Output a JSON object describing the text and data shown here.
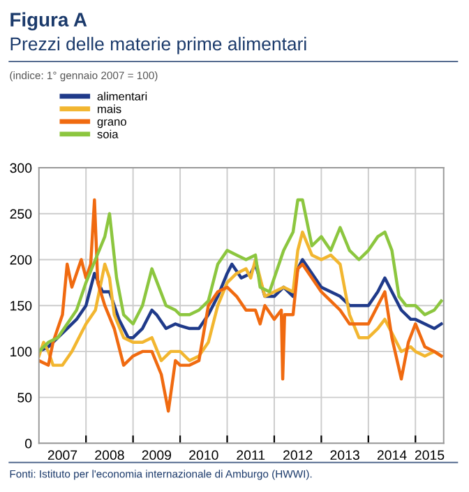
{
  "chart_data": {
    "type": "line",
    "title": "Figura A",
    "subtitle": "Prezzi delle materie prime alimentari",
    "annotations": [
      "(indice: 1° gennaio 2007 = 100)",
      "Fonti: Istituto per l'economia internazionale di Amburgo (HWWI)."
    ],
    "series": [
      {
        "name": "alimentari",
        "color": "#1f3a8a",
        "x": [
          2007.0,
          2007.2,
          2007.4,
          2007.6,
          2007.8,
          2008.0,
          2008.18,
          2008.35,
          2008.5,
          2008.7,
          2008.9,
          2009.0,
          2009.2,
          2009.4,
          2009.5,
          2009.7,
          2009.9,
          2010.0,
          2010.2,
          2010.4,
          2010.6,
          2010.8,
          2011.0,
          2011.1,
          2011.3,
          2011.5,
          2011.6,
          2011.8,
          2012.0,
          2012.2,
          2012.4,
          2012.5,
          2012.6,
          2012.8,
          2013.0,
          2013.2,
          2013.4,
          2013.6,
          2013.8,
          2014.0,
          2014.2,
          2014.35,
          2014.5,
          2014.7,
          2014.9,
          2015.0,
          2015.2,
          2015.4,
          2015.55
        ],
        "values": [
          100,
          105,
          115,
          125,
          135,
          150,
          185,
          165,
          165,
          135,
          115,
          115,
          125,
          145,
          140,
          125,
          130,
          128,
          125,
          125,
          140,
          160,
          185,
          195,
          180,
          185,
          195,
          160,
          160,
          170,
          160,
          190,
          200,
          185,
          170,
          165,
          160,
          150,
          150,
          150,
          165,
          180,
          165,
          145,
          135,
          135,
          130,
          125,
          130
        ]
      },
      {
        "name": "mais",
        "color": "#f2b630",
        "x": [
          2007.0,
          2007.1,
          2007.2,
          2007.3,
          2007.5,
          2007.7,
          2007.9,
          2008.0,
          2008.2,
          2008.4,
          2008.5,
          2008.6,
          2008.8,
          2009.0,
          2009.2,
          2009.4,
          2009.6,
          2009.8,
          2010.0,
          2010.2,
          2010.4,
          2010.6,
          2010.8,
          2011.0,
          2011.2,
          2011.4,
          2011.5,
          2011.6,
          2011.8,
          2012.0,
          2012.2,
          2012.4,
          2012.5,
          2012.6,
          2012.8,
          2013.0,
          2013.2,
          2013.4,
          2013.6,
          2013.8,
          2014.0,
          2014.2,
          2014.35,
          2014.5,
          2014.7,
          2014.9,
          2015.0,
          2015.2,
          2015.4,
          2015.55
        ],
        "values": [
          95,
          110,
          100,
          85,
          85,
          100,
          120,
          130,
          145,
          195,
          180,
          140,
          115,
          110,
          110,
          115,
          90,
          100,
          100,
          90,
          95,
          110,
          150,
          175,
          185,
          190,
          180,
          200,
          160,
          165,
          170,
          165,
          210,
          230,
          205,
          200,
          205,
          195,
          140,
          115,
          115,
          125,
          135,
          120,
          100,
          105,
          100,
          95,
          100,
          95
        ]
      },
      {
        "name": "grano",
        "color": "#f06a10",
        "x": [
          2007.0,
          2007.2,
          2007.3,
          2007.5,
          2007.6,
          2007.7,
          2007.9,
          2008.0,
          2008.1,
          2008.18,
          2008.25,
          2008.4,
          2008.6,
          2008.8,
          2009.0,
          2009.2,
          2009.4,
          2009.6,
          2009.75,
          2009.9,
          2010.0,
          2010.2,
          2010.4,
          2010.6,
          2010.8,
          2011.0,
          2011.2,
          2011.4,
          2011.6,
          2011.7,
          2011.8,
          2012.0,
          2012.15,
          2012.18,
          2012.22,
          2012.4,
          2012.5,
          2012.6,
          2012.8,
          2013.0,
          2013.2,
          2013.4,
          2013.6,
          2013.8,
          2014.0,
          2014.2,
          2014.35,
          2014.5,
          2014.7,
          2014.85,
          2015.0,
          2015.2,
          2015.4,
          2015.55
        ],
        "values": [
          90,
          85,
          110,
          140,
          195,
          170,
          200,
          180,
          195,
          265,
          175,
          150,
          125,
          85,
          95,
          100,
          100,
          75,
          35,
          90,
          85,
          85,
          90,
          150,
          165,
          170,
          160,
          145,
          145,
          130,
          150,
          135,
          145,
          70,
          140,
          140,
          190,
          195,
          180,
          165,
          155,
          145,
          130,
          130,
          130,
          150,
          165,
          115,
          70,
          110,
          130,
          105,
          100,
          95
        ]
      },
      {
        "name": "soia",
        "color": "#8cc63f",
        "x": [
          2007.0,
          2007.2,
          2007.4,
          2007.6,
          2007.8,
          2008.0,
          2008.2,
          2008.4,
          2008.5,
          2008.65,
          2008.8,
          2009.0,
          2009.2,
          2009.4,
          2009.55,
          2009.7,
          2009.9,
          2010.0,
          2010.2,
          2010.4,
          2010.6,
          2010.8,
          2011.0,
          2011.2,
          2011.4,
          2011.6,
          2011.7,
          2011.9,
          2012.0,
          2012.2,
          2012.4,
          2012.5,
          2012.6,
          2012.8,
          2013.0,
          2013.2,
          2013.4,
          2013.6,
          2013.8,
          2014.0,
          2014.2,
          2014.35,
          2014.5,
          2014.65,
          2014.8,
          2015.0,
          2015.2,
          2015.4,
          2015.55
        ],
        "values": [
          100,
          110,
          115,
          130,
          145,
          175,
          200,
          225,
          250,
          180,
          140,
          130,
          150,
          190,
          170,
          150,
          145,
          140,
          140,
          145,
          155,
          195,
          210,
          205,
          200,
          205,
          170,
          165,
          180,
          210,
          230,
          265,
          265,
          215,
          225,
          210,
          235,
          210,
          200,
          210,
          225,
          230,
          210,
          160,
          150,
          150,
          140,
          145,
          155
        ]
      }
    ],
    "xlim": [
      2007,
      2015.6
    ],
    "xticks": [
      {
        "value": 2008,
        "label": null
      },
      {
        "value": 2009,
        "label": null
      },
      {
        "value": 2010,
        "label": null
      },
      {
        "value": 2011,
        "label": null
      },
      {
        "value": 2012,
        "label": null
      },
      {
        "value": 2013,
        "label": null
      },
      {
        "value": 2014,
        "label": null
      },
      {
        "value": 2015,
        "label": null
      },
      {
        "value": 2007.5,
        "label": "2007"
      },
      {
        "value": 2008.5,
        "label": "2008"
      },
      {
        "value": 2009.5,
        "label": "2009"
      },
      {
        "value": 2010.5,
        "label": "2010"
      },
      {
        "value": 2011.5,
        "label": "2011"
      },
      {
        "value": 2012.5,
        "label": "2012"
      },
      {
        "value": 2013.5,
        "label": "2013"
      },
      {
        "value": 2014.5,
        "label": "2014"
      },
      {
        "value": 2015.3,
        "label": "2015"
      }
    ],
    "ylim": [
      0,
      300
    ],
    "yticks": [
      0,
      50,
      100,
      150,
      200,
      250,
      300
    ],
    "grid": true,
    "legend": "top left",
    "line_style": "solid",
    "marker": "none"
  }
}
